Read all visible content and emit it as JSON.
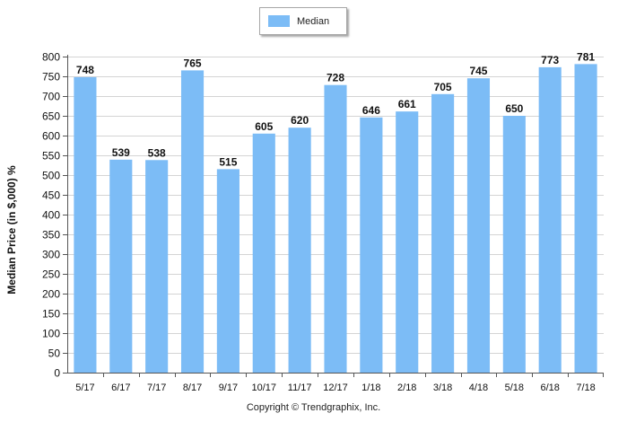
{
  "chart_data": {
    "type": "bar",
    "categories": [
      "5/17",
      "6/17",
      "7/17",
      "8/17",
      "9/17",
      "10/17",
      "11/17",
      "12/17",
      "1/18",
      "2/18",
      "3/18",
      "4/18",
      "5/18",
      "6/18",
      "7/18"
    ],
    "series": [
      {
        "name": "Median",
        "values": [
          748,
          539,
          538,
          765,
          515,
          605,
          620,
          728,
          646,
          661,
          705,
          745,
          650,
          773,
          781
        ]
      }
    ],
    "ylabel": "Median Price (in $,000) %",
    "xlabel": "",
    "ylim": [
      0,
      800
    ],
    "yticks": [
      0,
      50,
      100,
      150,
      200,
      250,
      300,
      350,
      400,
      450,
      500,
      550,
      600,
      650,
      700,
      750,
      800
    ],
    "grid": true,
    "legend_position": "top-center",
    "bar_color": "#7cbcf6",
    "grid_color": "#d4d4d4"
  },
  "legend": {
    "label": "Median"
  },
  "footer": {
    "copyright": "Copyright © Trendgraphix, Inc."
  }
}
